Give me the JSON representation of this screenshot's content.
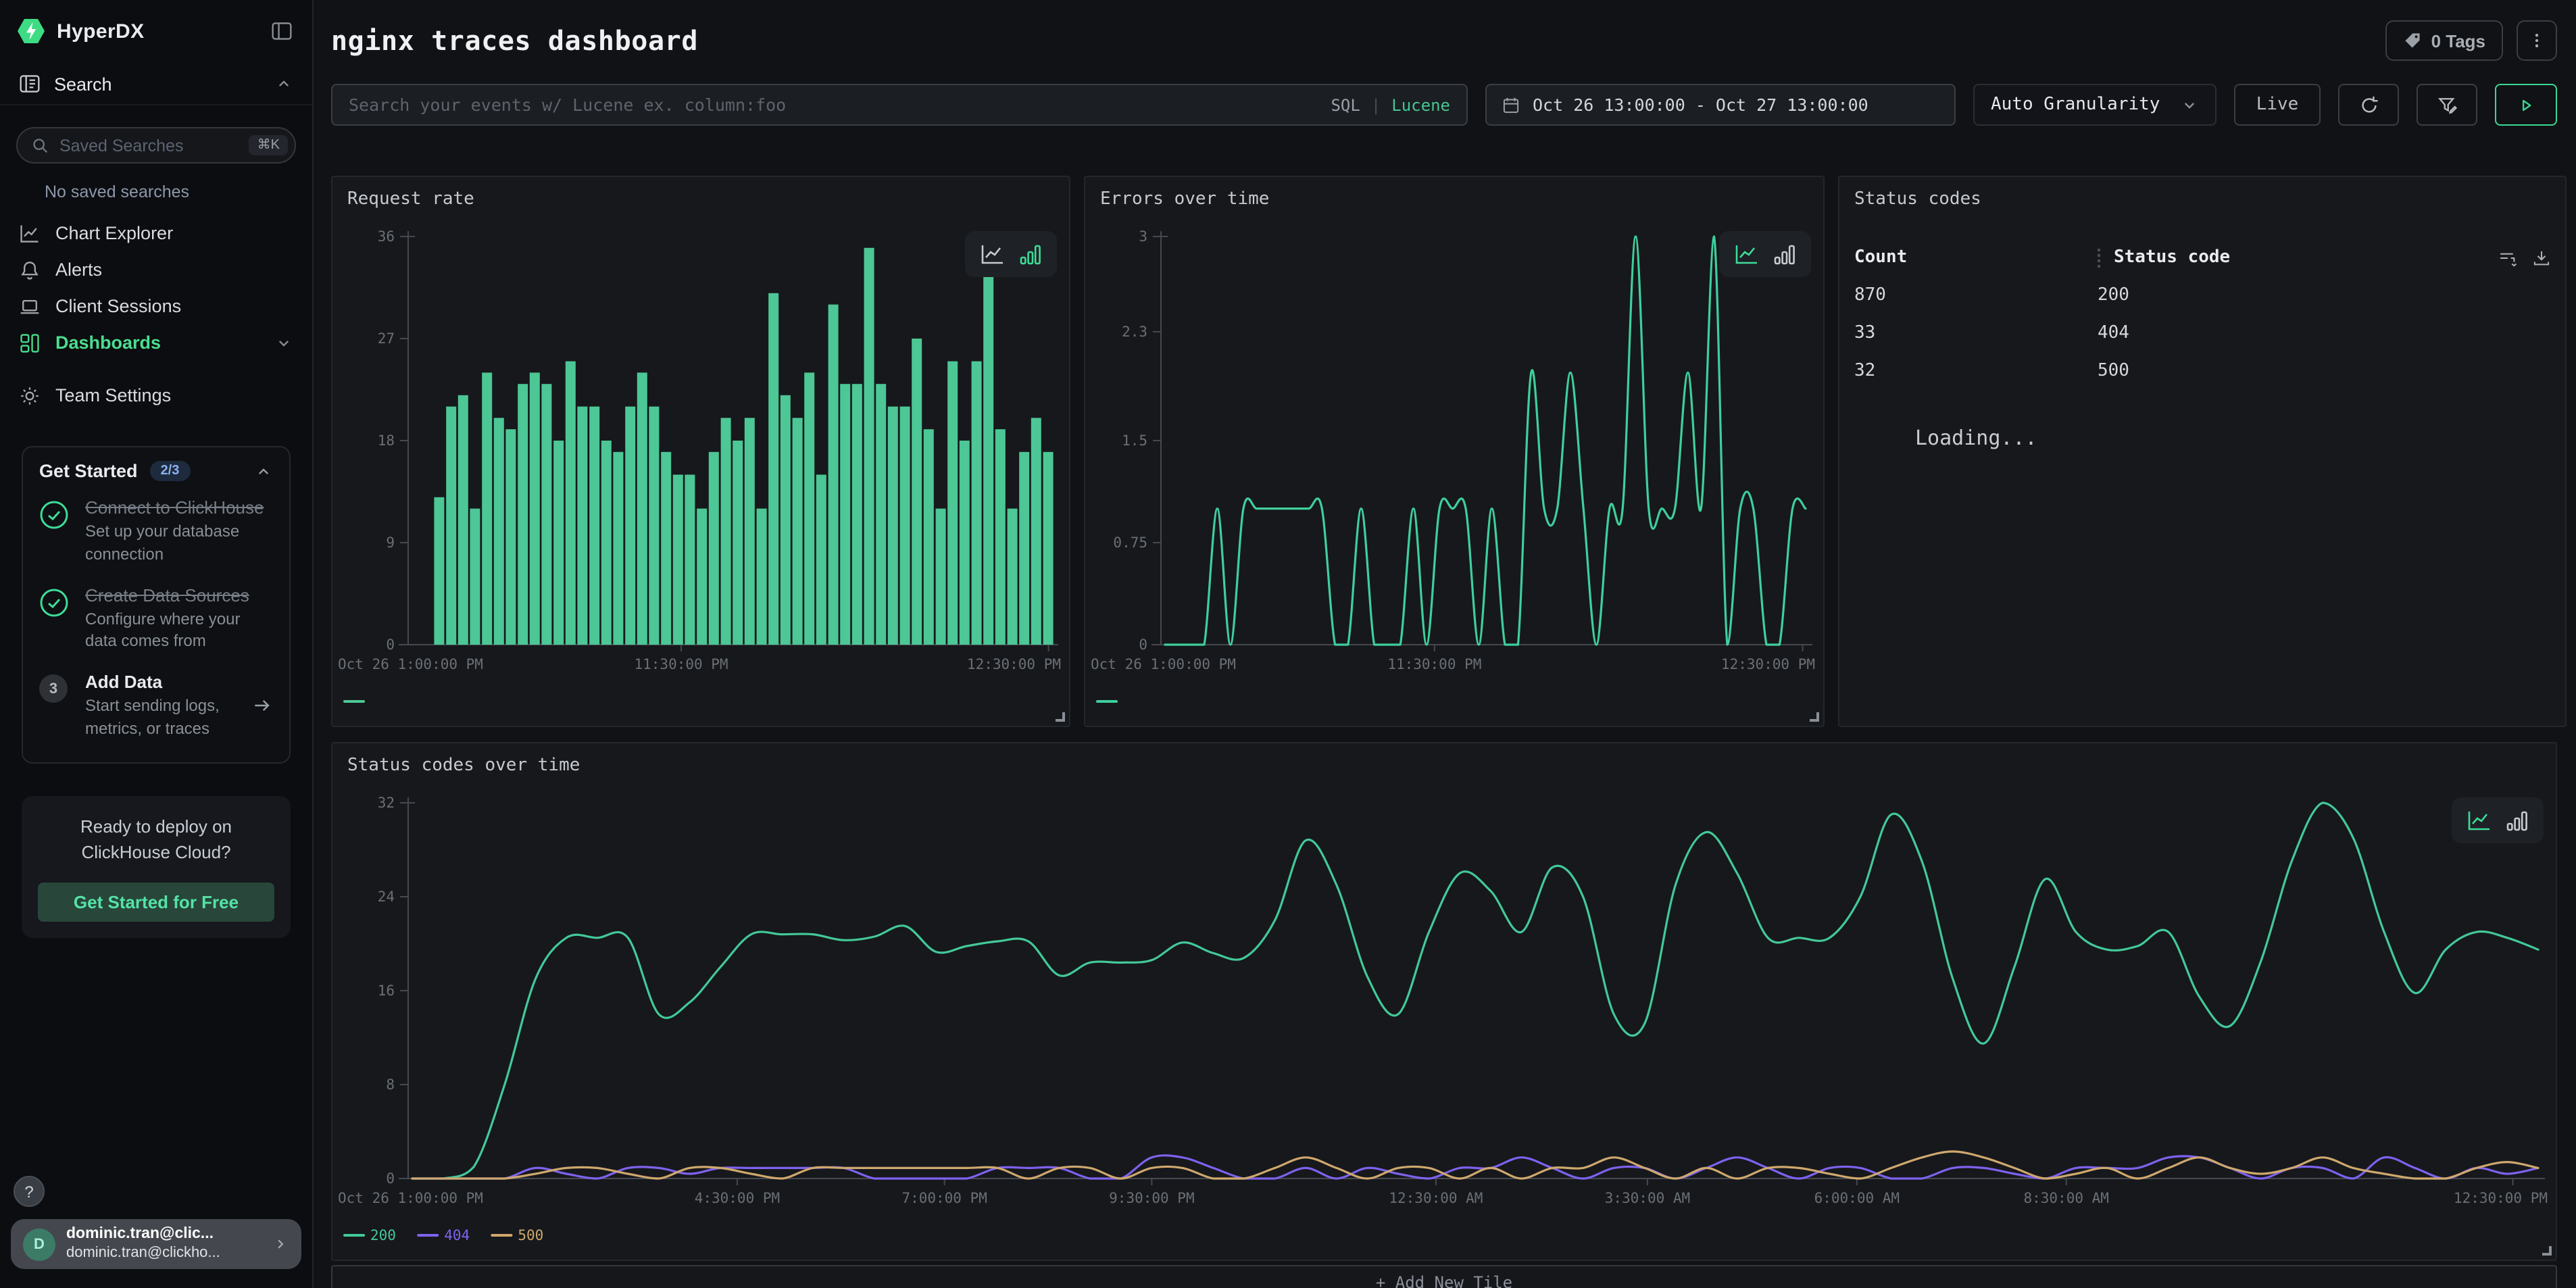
{
  "brand": {
    "name": "HyperDX"
  },
  "sidebar": {
    "search_label": "Search",
    "saved_searches_placeholder": "Saved Searches",
    "saved_searches_shortcut": "⌘K",
    "no_saved": "No saved searches",
    "items": [
      {
        "label": "Chart Explorer"
      },
      {
        "label": "Alerts"
      },
      {
        "label": "Client Sessions"
      },
      {
        "label": "Dashboards"
      },
      {
        "label": "Team Settings"
      }
    ],
    "get_started": {
      "title": "Get Started",
      "badge": "2/3",
      "steps": [
        {
          "title": "Connect to ClickHouse",
          "desc": "Set up your database connection"
        },
        {
          "title": "Create Data Sources",
          "desc": "Configure where your data comes from"
        },
        {
          "title": "Add Data",
          "desc": "Start sending logs, metrics, or traces",
          "num": "3"
        }
      ]
    },
    "promo": {
      "line1": "Ready to deploy on",
      "line2": "ClickHouse Cloud?",
      "cta": "Get Started for Free"
    },
    "help": "?",
    "user": {
      "initial": "D",
      "name": "dominic.tran@clic...",
      "email": "dominic.tran@clickho..."
    }
  },
  "header": {
    "title": "nginx traces dashboard",
    "tags_label": "0 Tags"
  },
  "toolbar": {
    "search_placeholder": "Search your events w/ Lucene ex. column:foo",
    "sql": "SQL",
    "divider": "|",
    "lucene": "Lucene",
    "date_range": "Oct 26 13:00:00 - Oct 27 13:00:00",
    "granularity": "Auto Granularity",
    "live": "Live"
  },
  "add_tile": "+ Add New Tile",
  "colors": {
    "green": "#4cc795",
    "green_line": "#3fcf9c",
    "purple": "#7e62ee",
    "tan": "#cfa86d",
    "axis": "#45494f",
    "accent": "#3ddc97"
  },
  "chart_data": [
    {
      "type": "bar",
      "mode": "bar",
      "title": "Request rate",
      "color": "#4cc795",
      "ymax": 36,
      "grid": false,
      "legend_position": "bottom-left",
      "yticks": [
        {
          "v": 0,
          "label": "0"
        },
        {
          "v": 9,
          "label": "9"
        },
        {
          "v": 18,
          "label": "18"
        },
        {
          "v": 27,
          "label": "27"
        },
        {
          "v": 36,
          "label": "36"
        }
      ],
      "xticks": [
        {
          "label": "Oct 26 1:00:00 PM",
          "pos": 0
        },
        {
          "label": "11:30:00 PM",
          "pos": 0.42
        },
        {
          "label": "12:30:00 PM",
          "pos": 0.985
        }
      ],
      "values": [
        13,
        21,
        22,
        12,
        24,
        20,
        19,
        23,
        24,
        23,
        18,
        25,
        21,
        21,
        18,
        17,
        21,
        24,
        21,
        17,
        15,
        15,
        12,
        17,
        20,
        18,
        20,
        12,
        31,
        22,
        20,
        24,
        15,
        30,
        23,
        23,
        35,
        23,
        21,
        21,
        27,
        19,
        12,
        25,
        18,
        25,
        34,
        19,
        12,
        17,
        20,
        17
      ]
    },
    {
      "type": "line",
      "mode": "line",
      "title": "Errors over time",
      "color": "#3fcf9c",
      "ymax": 3,
      "grid": false,
      "legend_position": "bottom-left",
      "yticks": [
        {
          "v": 0,
          "label": "0"
        },
        {
          "v": 0.75,
          "label": "0.75"
        },
        {
          "v": 1.5,
          "label": "1.5"
        },
        {
          "v": 2.3,
          "label": "2.3"
        },
        {
          "v": 3,
          "label": "3"
        }
      ],
      "xticks": [
        {
          "label": "Oct 26 1:00:00 PM",
          "pos": 0
        },
        {
          "label": "11:30:00 PM",
          "pos": 0.42
        },
        {
          "label": "12:30:00 PM",
          "pos": 0.985
        }
      ],
      "values": [
        0,
        0,
        0,
        0,
        1,
        0,
        1,
        1,
        1,
        1,
        1,
        1,
        1,
        0,
        0,
        1,
        0,
        0,
        0,
        1,
        0,
        1,
        1,
        1,
        0,
        1,
        0,
        0,
        2,
        1,
        1,
        2,
        1,
        0,
        1,
        1,
        3,
        1,
        1,
        1,
        2,
        1,
        3,
        0,
        1,
        1,
        0,
        0,
        1,
        1
      ]
    },
    {
      "type": "table",
      "title": "Status codes",
      "columns": [
        "Count",
        "Status code"
      ],
      "rows": [
        [
          "870",
          "200"
        ],
        [
          "33",
          "404"
        ],
        [
          "32",
          "500"
        ]
      ],
      "loading": "Loading..."
    },
    {
      "type": "line",
      "mode": "line",
      "title": "Status codes over time",
      "ymax": 32,
      "grid": false,
      "legend_position": "bottom-left",
      "yticks": [
        {
          "v": 0,
          "label": "0"
        },
        {
          "v": 8,
          "label": "8"
        },
        {
          "v": 16,
          "label": "16"
        },
        {
          "v": 24,
          "label": "24"
        },
        {
          "v": 32,
          "label": "32"
        }
      ],
      "xticks": [
        {
          "label": "Oct 26 1:00:00 PM",
          "pos": 0
        },
        {
          "label": "4:30:00 PM",
          "pos": 0.154
        },
        {
          "label": "7:00:00 PM",
          "pos": 0.251
        },
        {
          "label": "9:30:00 PM",
          "pos": 0.348
        },
        {
          "label": "12:30:00 AM",
          "pos": 0.481
        },
        {
          "label": "3:30:00 AM",
          "pos": 0.58
        },
        {
          "label": "6:00:00 AM",
          "pos": 0.678
        },
        {
          "label": "8:30:00 AM",
          "pos": 0.776
        },
        {
          "label": "12:30:00 PM",
          "pos": 0.985
        }
      ],
      "series": [
        {
          "name": "200",
          "color": "#43c998",
          "values": [
            0,
            0,
            1,
            8,
            17,
            20.5,
            20.5,
            20.5,
            14,
            15,
            18,
            20.8,
            20.8,
            20.8,
            20.3,
            20.6,
            21.5,
            19.3,
            19.8,
            20.2,
            20.2,
            17.3,
            18.4,
            18.4,
            18.6,
            20.1,
            19.2,
            18.8,
            22,
            28.8,
            25,
            17.2,
            14,
            21,
            26,
            24.5,
            21,
            26.5,
            24,
            14,
            13.2,
            25,
            29.5,
            26,
            20.5,
            20.5,
            20.5,
            24,
            31,
            27,
            17,
            11.5,
            18,
            25.5,
            21,
            19.5,
            19.8,
            21,
            15.5,
            13,
            18.5,
            27,
            32,
            29,
            21,
            15.8,
            19.5,
            21,
            20.5,
            19.5
          ]
        },
        {
          "name": "404",
          "color": "#7e62ee",
          "values": [
            0,
            0,
            0,
            0,
            0.9,
            0.4,
            0,
            0.9,
            0.9,
            0.4,
            0.9,
            0.9,
            0.9,
            0.9,
            0.9,
            0,
            0,
            0,
            0,
            0.9,
            0.9,
            0.9,
            0,
            0,
            1.8,
            1.8,
            0.9,
            0,
            0,
            0.9,
            0,
            0.9,
            0.4,
            0,
            0.9,
            0.9,
            1.8,
            0.9,
            0,
            0.9,
            0.9,
            0,
            0.9,
            1.8,
            0.9,
            0,
            0.9,
            0.9,
            0,
            0,
            0.9,
            0.9,
            0.4,
            0,
            0.9,
            0.9,
            0.9,
            1.8,
            1.8,
            0.9,
            0,
            0.9,
            0.9,
            0,
            1.8,
            0.9,
            0,
            0.9,
            0.4,
            0.9
          ]
        },
        {
          "name": "500",
          "color": "#cfa86d",
          "values": [
            0,
            0,
            0,
            0,
            0.4,
            0.9,
            0.9,
            0.4,
            0,
            0.9,
            0.9,
            0.4,
            0,
            0.9,
            0.9,
            0.9,
            0.9,
            0.9,
            0.9,
            0.9,
            0,
            0.9,
            0.9,
            0,
            0.9,
            0.9,
            0,
            0,
            0.9,
            1.8,
            0.9,
            0,
            0.9,
            0.9,
            0,
            0.9,
            0,
            0.9,
            0.9,
            1.8,
            0.9,
            0,
            0.9,
            0,
            0.9,
            0.9,
            0.4,
            0,
            0.9,
            1.8,
            2.3,
            1.8,
            0.9,
            0,
            0.4,
            0.9,
            0,
            0.9,
            1.8,
            0.9,
            0.4,
            0.9,
            1.8,
            0.9,
            0.4,
            0,
            0,
            0.9,
            1.4,
            0.9
          ]
        }
      ]
    }
  ]
}
